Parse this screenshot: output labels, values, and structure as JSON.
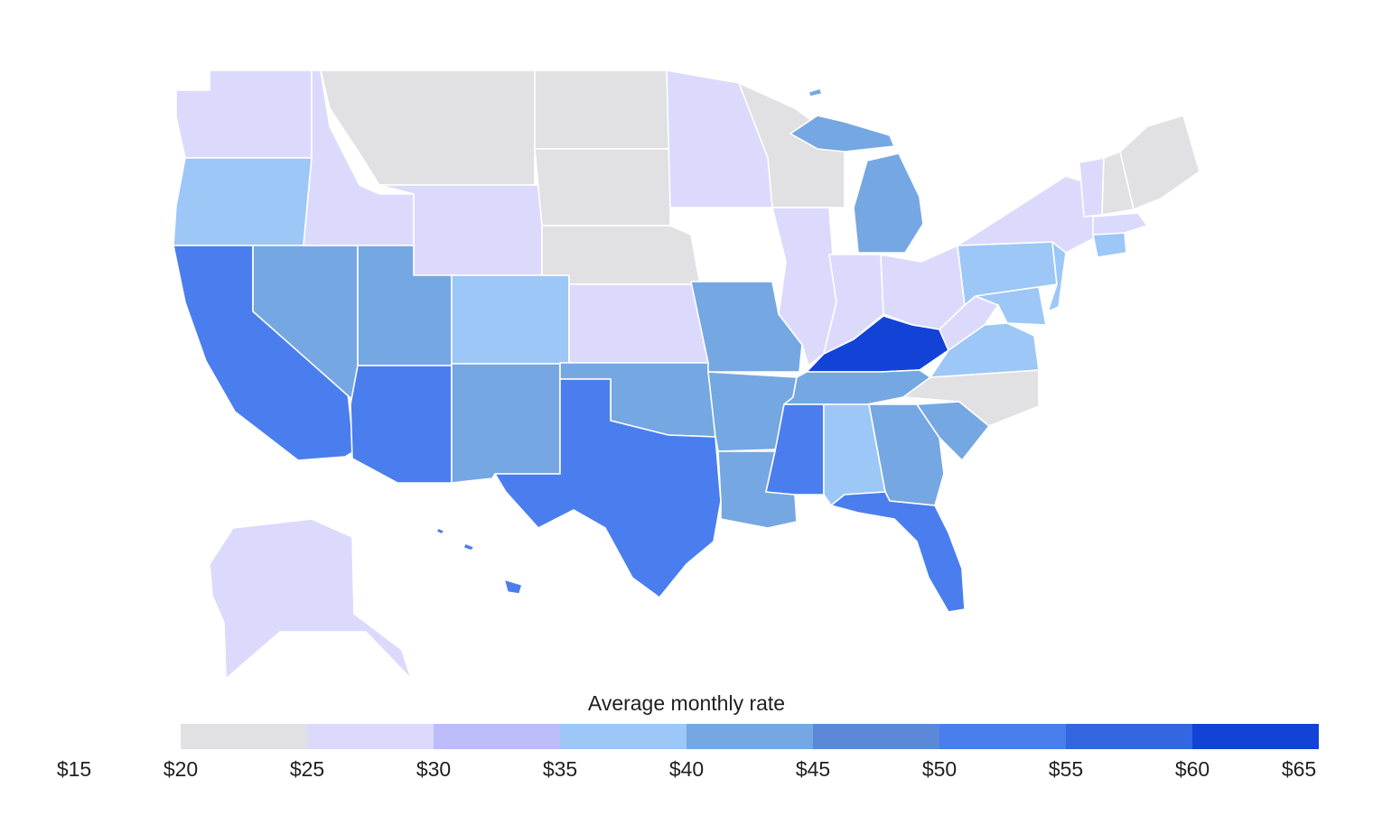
{
  "legend": {
    "title": "Average monthly rate",
    "bins": [
      {
        "from": 20,
        "to": 25,
        "color": "#e1e1e4"
      },
      {
        "from": 25,
        "to": 30,
        "color": "#dcdafc"
      },
      {
        "from": 30,
        "to": 35,
        "color": "#bcbcf9"
      },
      {
        "from": 35,
        "to": 40,
        "color": "#9cc7f7"
      },
      {
        "from": 40,
        "to": 45,
        "color": "#75a7e2"
      },
      {
        "from": 45,
        "to": 50,
        "color": "#5b88d8"
      },
      {
        "from": 50,
        "to": 55,
        "color": "#4a7eee"
      },
      {
        "from": 55,
        "to": 60,
        "color": "#3366e0"
      },
      {
        "from": 60,
        "to": 65,
        "color": "#1243d6"
      }
    ],
    "ticks": [
      "$15",
      "$20",
      "$25",
      "$30",
      "$35",
      "$40",
      "$45",
      "$50",
      "$55",
      "$60",
      "$65"
    ]
  },
  "states": [
    {
      "id": "WA",
      "color": "#dcdafc"
    },
    {
      "id": "OR",
      "color": "#9cc7f7"
    },
    {
      "id": "CA",
      "color": "#4a7eee"
    },
    {
      "id": "NV",
      "color": "#75a7e2"
    },
    {
      "id": "ID",
      "color": "#dcdafc"
    },
    {
      "id": "MT",
      "color": "#e1e1e4"
    },
    {
      "id": "WY",
      "color": "#dcdafc"
    },
    {
      "id": "UT",
      "color": "#75a7e2"
    },
    {
      "id": "CO",
      "color": "#9cc7f7"
    },
    {
      "id": "AZ",
      "color": "#4a7eee"
    },
    {
      "id": "NM",
      "color": "#75a7e2"
    },
    {
      "id": "ND",
      "color": "#e1e1e4"
    },
    {
      "id": "SD",
      "color": "#e1e1e4"
    },
    {
      "id": "NE",
      "color": "#e1e1e4"
    },
    {
      "id": "KS",
      "color": "#dcdafc"
    },
    {
      "id": "OK",
      "color": "#75a7e2"
    },
    {
      "id": "TX",
      "color": "#4a7eee"
    },
    {
      "id": "MN",
      "color": "#dcdafc"
    },
    {
      "id": "IA",
      "color": "#ffffff"
    },
    {
      "id": "MO",
      "color": "#75a7e2"
    },
    {
      "id": "AR",
      "color": "#75a7e2"
    },
    {
      "id": "LA",
      "color": "#75a7e2"
    },
    {
      "id": "WI",
      "color": "#e1e1e4"
    },
    {
      "id": "IL",
      "color": "#dcdafc"
    },
    {
      "id": "MI",
      "color": "#75a7e2"
    },
    {
      "id": "IN",
      "color": "#dcdafc"
    },
    {
      "id": "OH",
      "color": "#dcdafc"
    },
    {
      "id": "KY",
      "color": "#1243d6"
    },
    {
      "id": "TN",
      "color": "#75a7e2"
    },
    {
      "id": "MS",
      "color": "#4a7eee"
    },
    {
      "id": "AL",
      "color": "#9cc7f7"
    },
    {
      "id": "GA",
      "color": "#75a7e2"
    },
    {
      "id": "FL",
      "color": "#4a7eee"
    },
    {
      "id": "SC",
      "color": "#75a7e2"
    },
    {
      "id": "NC",
      "color": "#e1e1e4"
    },
    {
      "id": "VA",
      "color": "#9cc7f7"
    },
    {
      "id": "WV",
      "color": "#dcdafc"
    },
    {
      "id": "PA",
      "color": "#9cc7f7"
    },
    {
      "id": "NY",
      "color": "#dcdafc"
    },
    {
      "id": "NJ",
      "color": "#9cc7f7"
    },
    {
      "id": "MD",
      "color": "#9cc7f7"
    },
    {
      "id": "VT",
      "color": "#dcdafc"
    },
    {
      "id": "NH",
      "color": "#e1e1e4"
    },
    {
      "id": "ME",
      "color": "#e1e1e4"
    },
    {
      "id": "MA",
      "color": "#dcdafc"
    },
    {
      "id": "CT",
      "color": "#9cc7f7"
    },
    {
      "id": "AK",
      "color": "#dcdafc"
    },
    {
      "id": "HI",
      "color": "#4a7eee"
    }
  ]
}
